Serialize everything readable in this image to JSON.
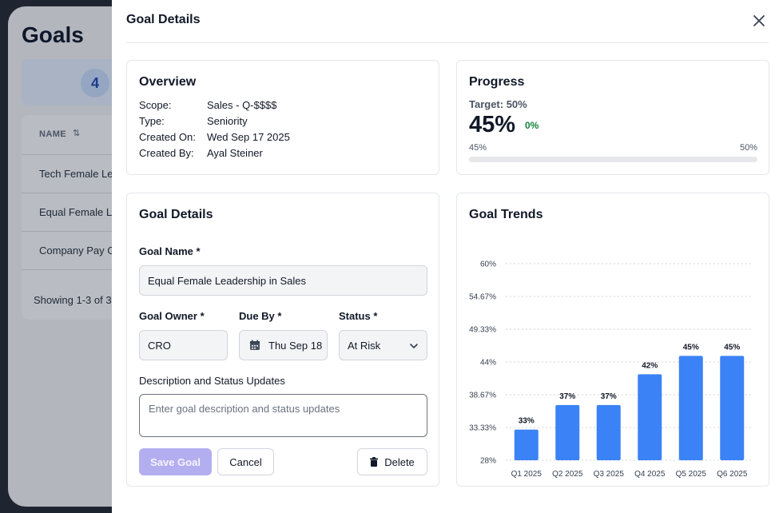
{
  "background": {
    "title": "Goals",
    "stat_number": "4",
    "table_header": "NAME",
    "rows": [
      "Tech Female Le",
      "Equal Female Le",
      "Company Pay G"
    ],
    "showing": "Showing 1-3 of 3"
  },
  "drawer": {
    "title": "Goal Details",
    "overview": {
      "title": "Overview",
      "rows": [
        {
          "key": "Scope:",
          "value": "Sales - Q-$$$$"
        },
        {
          "key": "Type:",
          "value": "Seniority"
        },
        {
          "key": "Created On:",
          "value": "Wed Sep 17 2025"
        },
        {
          "key": "Created By:",
          "value": "Ayal Steiner"
        }
      ]
    },
    "progress": {
      "title": "Progress",
      "target": "Target: 50%",
      "value": "45%",
      "delta": "0%",
      "min_label": "45%",
      "max_label": "50%",
      "fill_fraction": 0
    },
    "form": {
      "title": "Goal Details",
      "name_label": "Goal Name *",
      "name_value": "Equal Female Leadership in Sales",
      "owner_label": "Goal Owner *",
      "owner_value": "CRO",
      "due_label": "Due By *",
      "due_value": "Thu Sep 18",
      "status_label": "Status *",
      "status_value": "At Risk",
      "desc_label": "Description and Status Updates",
      "desc_placeholder": "Enter goal description and status updates",
      "save_label": "Save Goal",
      "cancel_label": "Cancel",
      "delete_label": "Delete"
    },
    "trends_title": "Goal Trends"
  },
  "colors": {
    "accent": "#3b82f6",
    "save_disabled": "#b3aef0",
    "delta_green": "#15803d"
  },
  "chart_data": {
    "type": "bar",
    "title": "Goal Trends",
    "categories": [
      "Q1 2025",
      "Q2 2025",
      "Q3 2025",
      "Q4 2025",
      "Q5 2025",
      "Q6 2025"
    ],
    "values": [
      33,
      37,
      37,
      42,
      45,
      45
    ],
    "data_labels": [
      "33%",
      "37%",
      "37%",
      "42%",
      "45%",
      "45%"
    ],
    "ylim": [
      28,
      60
    ],
    "yticks": [
      28,
      33.33,
      38.67,
      44,
      49.33,
      54.67,
      60
    ],
    "ytick_labels": [
      "28%",
      "33.33%",
      "38.67%",
      "44%",
      "49.33%",
      "54.67%",
      "60%"
    ],
    "grid": true,
    "color": "#3b82f6",
    "xlabel": "",
    "ylabel": ""
  }
}
